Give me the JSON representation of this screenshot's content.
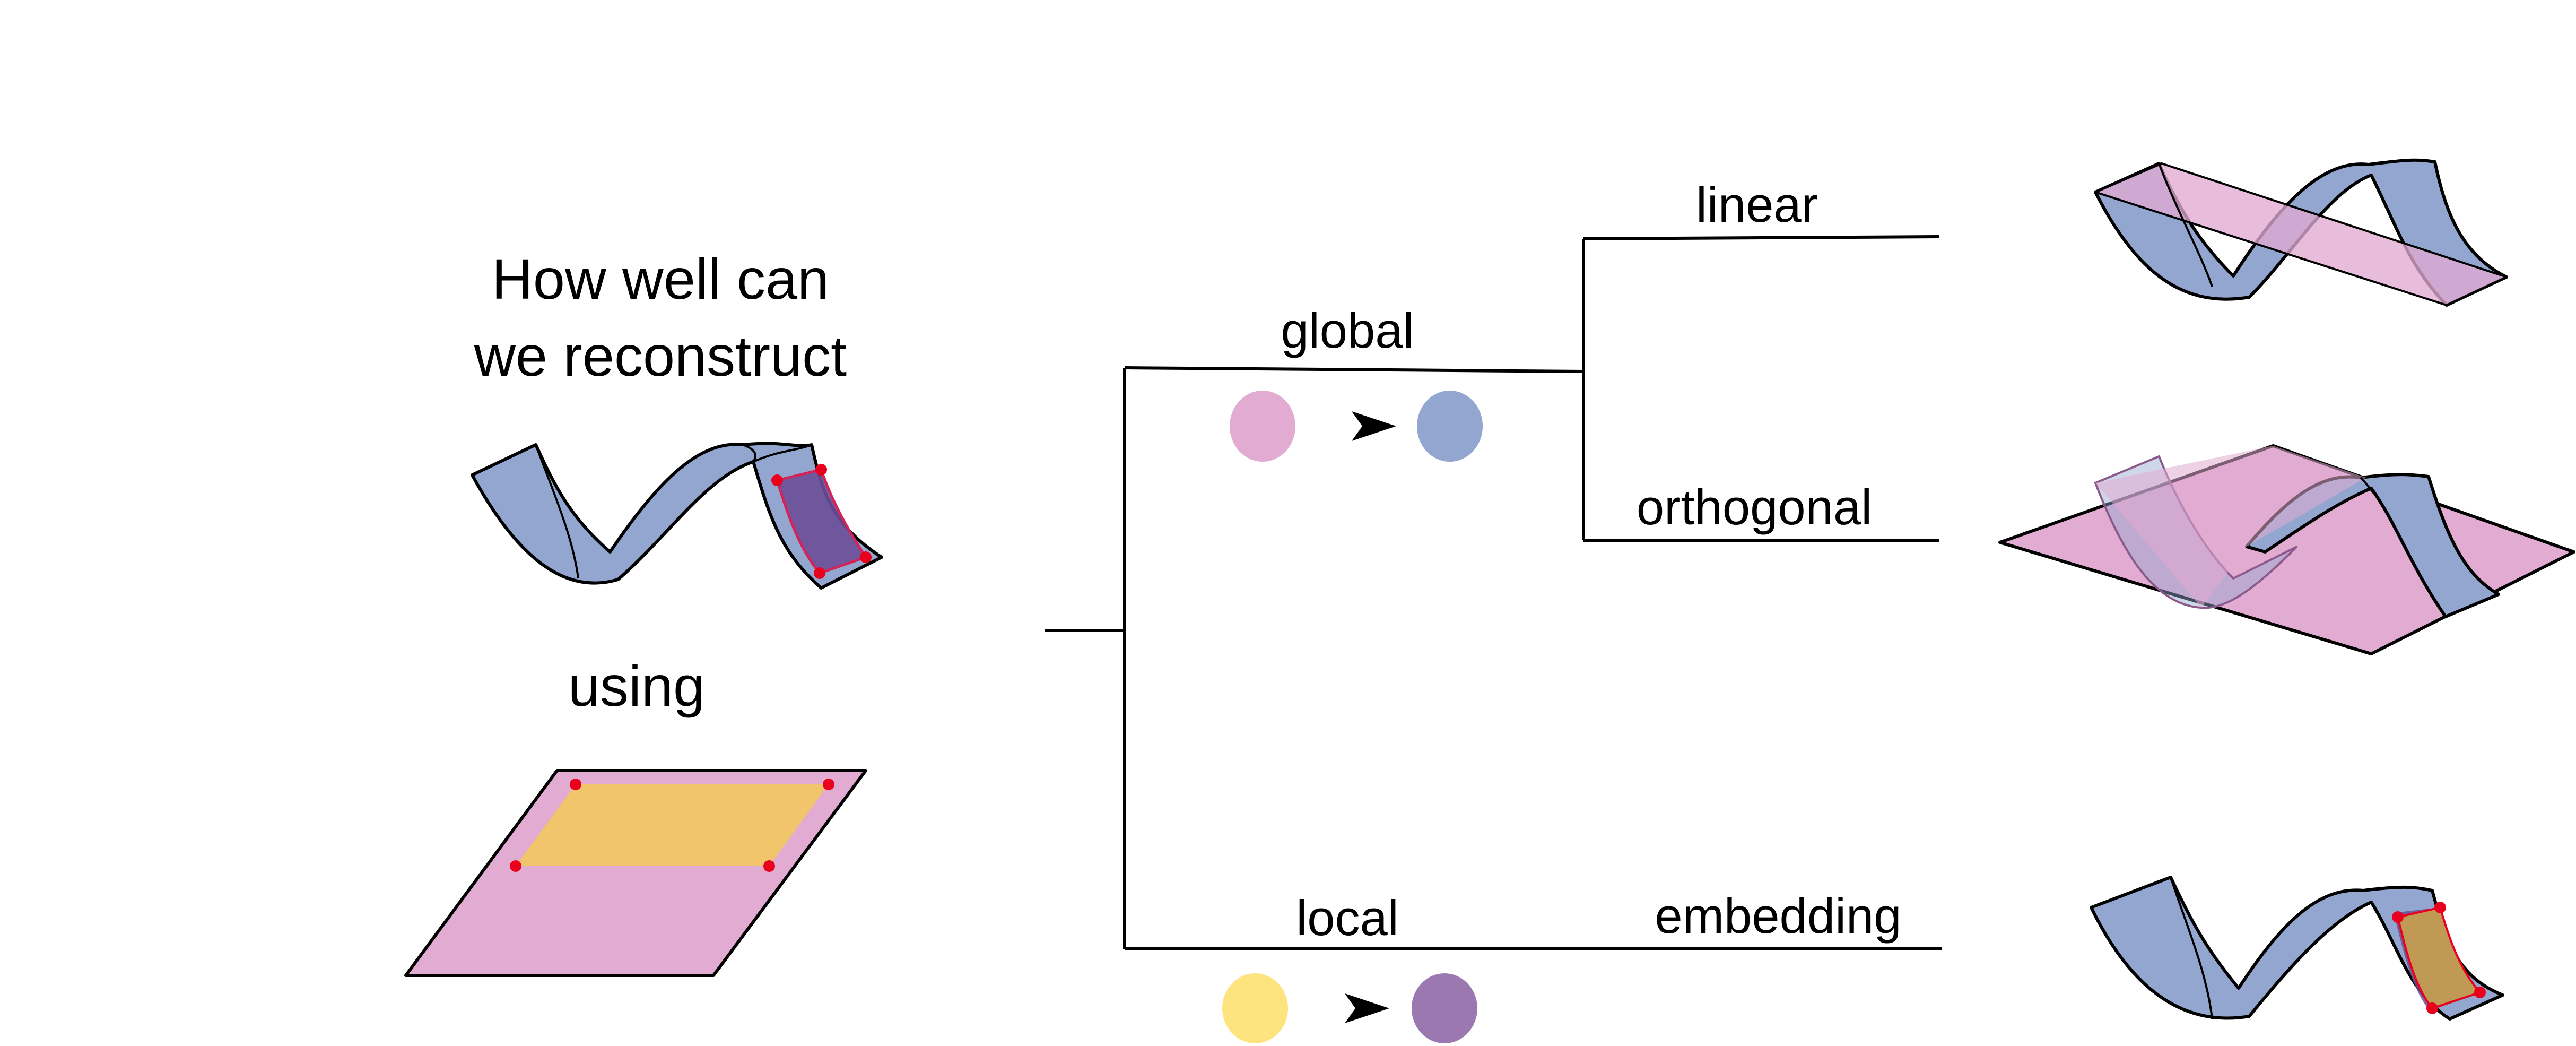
{
  "question": {
    "line1": "How well can",
    "line2": "we reconstruct",
    "using": "using"
  },
  "tree": {
    "global": "global",
    "local": "local",
    "linear": "linear",
    "orthogonal": "orthogonal",
    "embedding": "embedding"
  },
  "colors": {
    "manifold_blue": "#92a6cf",
    "plane_pink": "#e2abd2",
    "patch_yellow": "#f2c46c",
    "patch_purple": "#6d4e97",
    "patch_brown": "#c49d50",
    "dot_red": "#e8001c",
    "circle_pink": "#e2abd2",
    "circle_blue": "#92a6cf",
    "circle_yellow": "#fde47f",
    "circle_purple": "#9b79b0"
  },
  "icons": [
    "manifold-icon",
    "plane-icon",
    "arrowhead-icon"
  ]
}
